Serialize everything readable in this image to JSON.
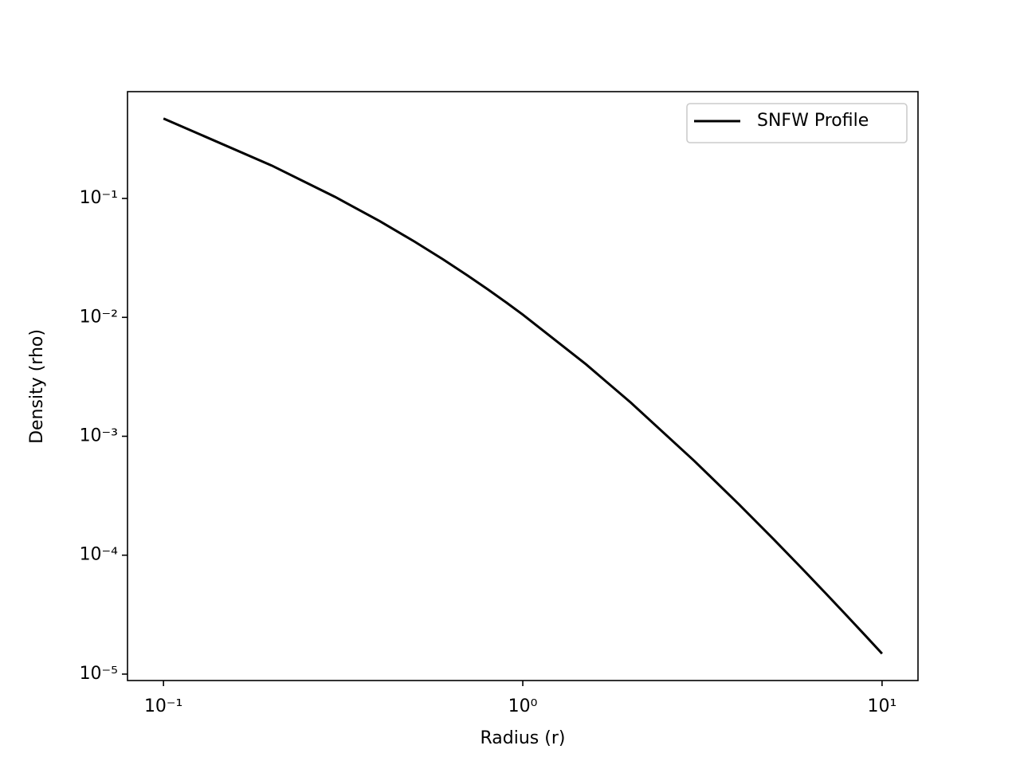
{
  "chart_data": {
    "type": "line",
    "x_label": "Radius (r)",
    "y_label": "Density (rho)",
    "x": [
      0.1,
      0.2,
      0.3,
      0.4,
      0.5,
      0.6,
      0.7,
      0.8,
      0.9,
      1,
      1.5,
      2,
      3,
      4,
      5,
      6,
      7,
      8,
      9,
      10
    ],
    "series": [
      {
        "name": "SNFW Profile",
        "color": "#000000",
        "values": [
          0.4703,
          0.1892,
          0.1032,
          0.06434,
          0.04331,
          0.03072,
          0.02263,
          0.01716,
          0.01333,
          0.01055,
          0.004026,
          0.001914,
          0.0006217,
          0.0002669,
          0.0001354,
          7.673e-05,
          4.71e-05,
          3.07e-05,
          2.097e-05,
          1.487e-05
        ]
      }
    ],
    "x_scale": "log",
    "y_scale": "log",
    "xlim": [
      0.0794,
      12.59
    ],
    "ylim": [
      8.83e-06,
      0.791
    ],
    "xticks": [
      {
        "value": 0.1,
        "label": "10⁻¹"
      },
      {
        "value": 1,
        "label": "10⁰"
      },
      {
        "value": 10,
        "label": "10¹"
      }
    ],
    "yticks": [
      {
        "value": 0.1,
        "label": "10⁻¹"
      },
      {
        "value": 0.01,
        "label": "10⁻²"
      },
      {
        "value": 0.001,
        "label": "10⁻³"
      },
      {
        "value": 0.0001,
        "label": "10⁻⁴"
      },
      {
        "value": 1e-05,
        "label": "10⁻⁵"
      }
    ],
    "grid": false,
    "legend": "upper right"
  }
}
